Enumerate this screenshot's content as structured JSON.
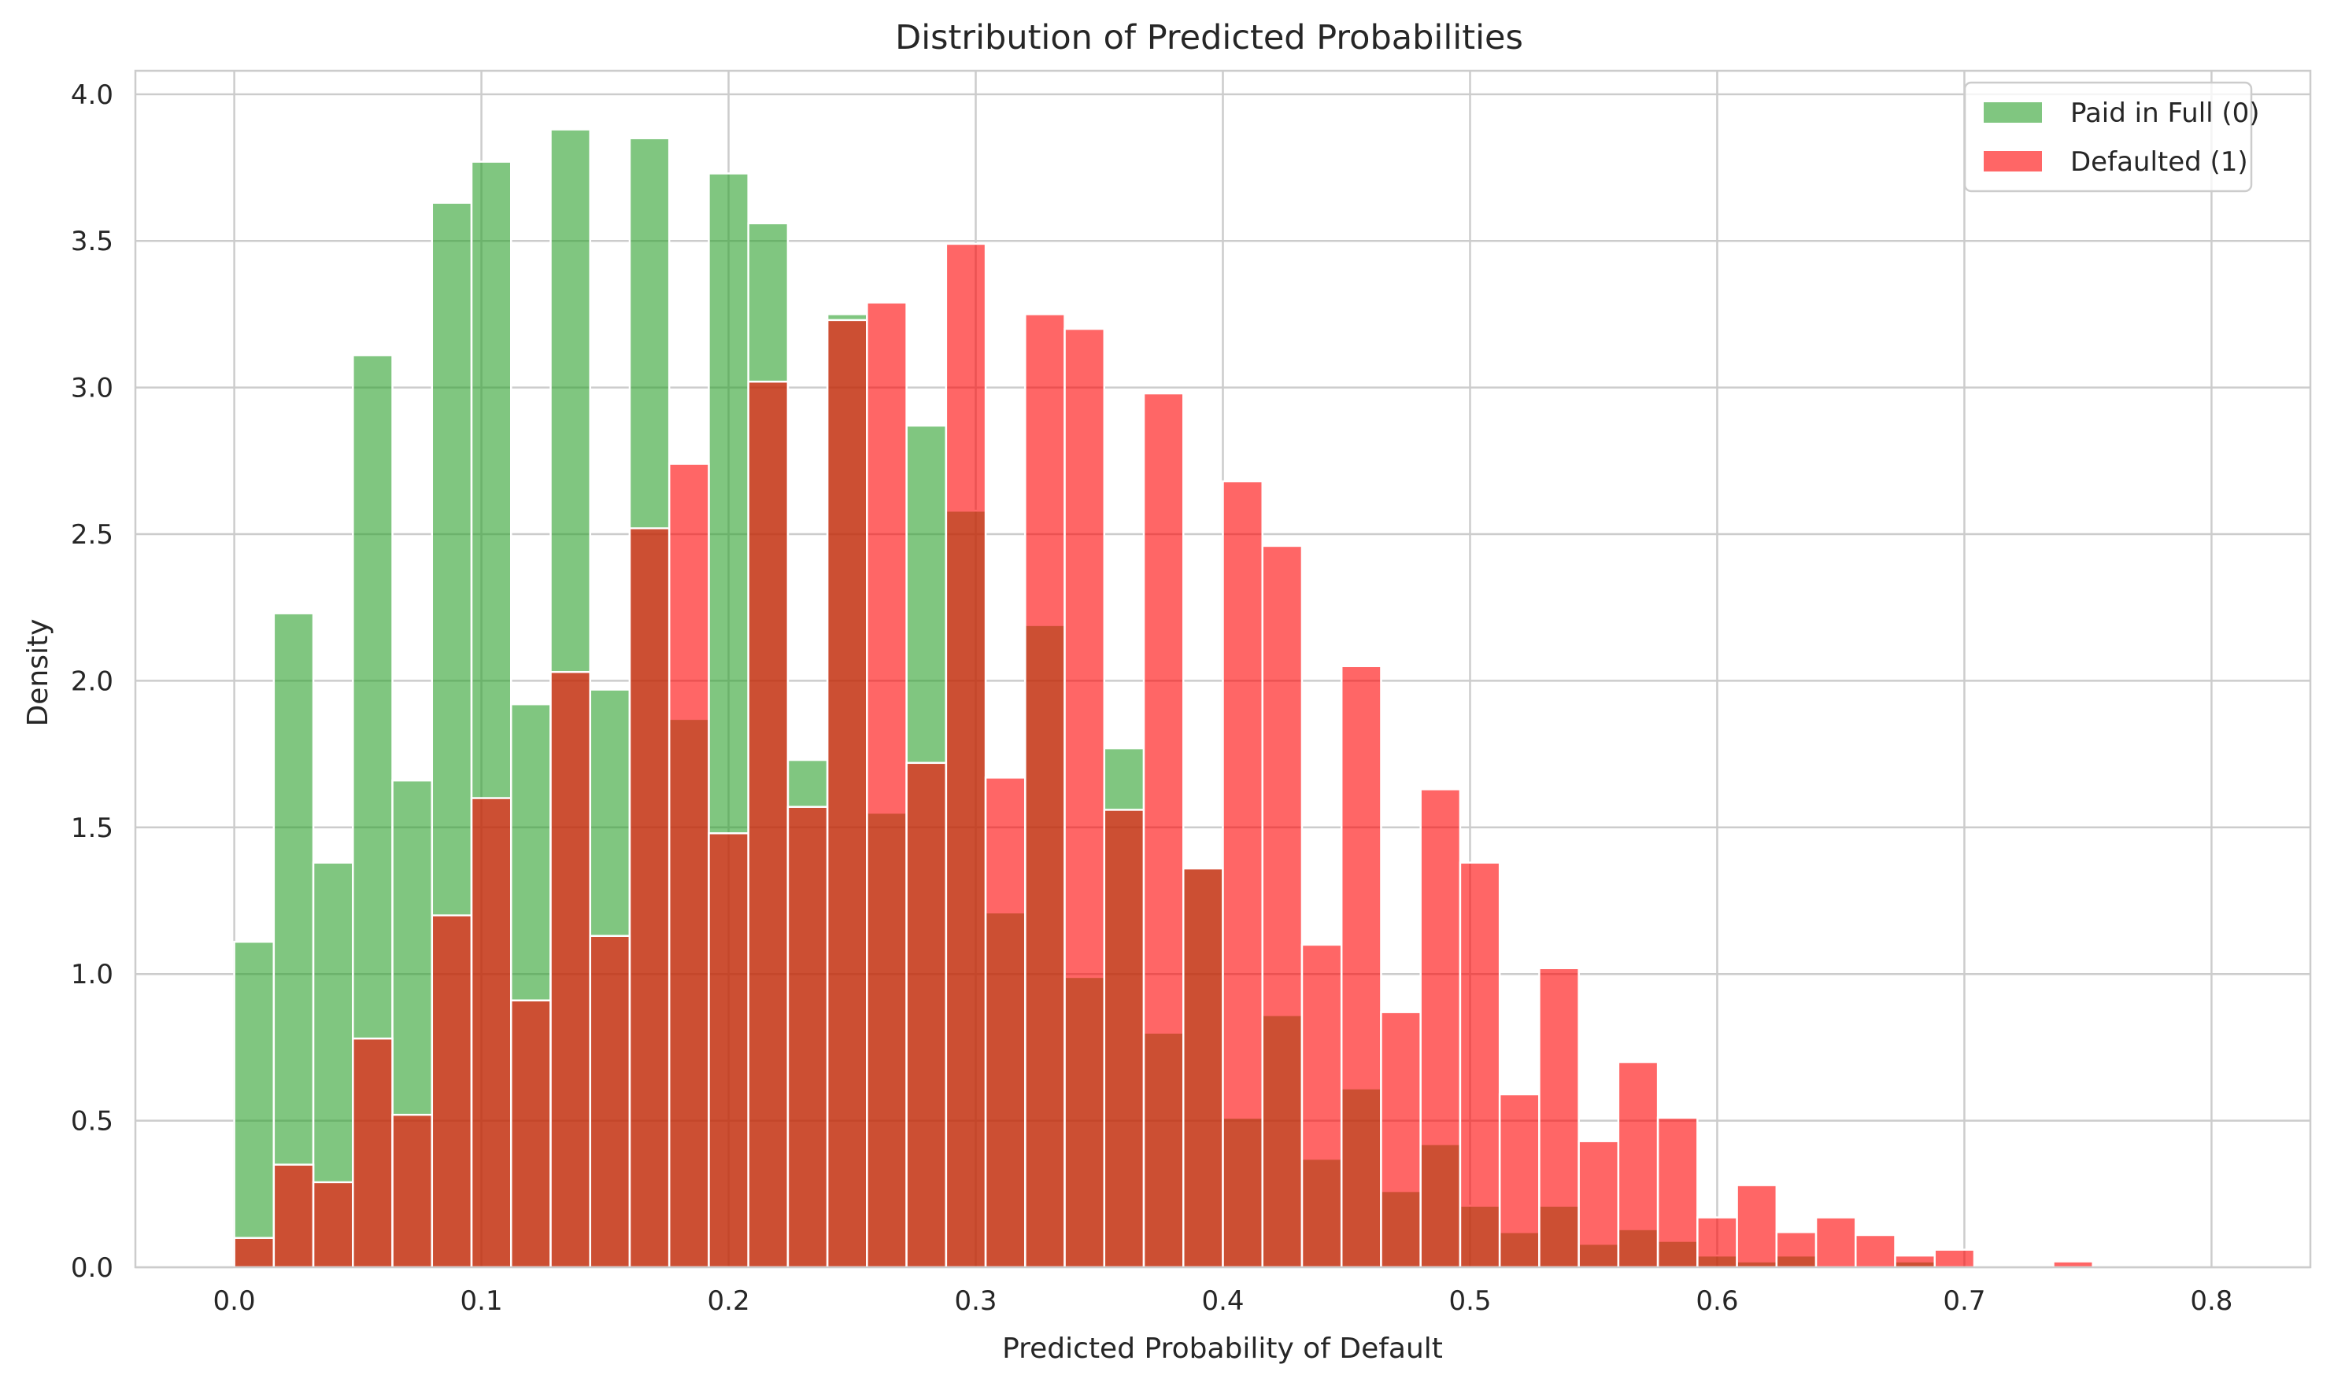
{
  "chart_data": {
    "type": "bar",
    "title": "Distribution of Predicted Probabilities",
    "xlabel": "Predicted Probability of Default",
    "ylabel": "Density",
    "xlim": [
      -0.04,
      0.84
    ],
    "ylim": [
      0,
      4.08
    ],
    "xticks": [
      0.0,
      0.1,
      0.2,
      0.3,
      0.4,
      0.5,
      0.6,
      0.7,
      0.8
    ],
    "xtick_labels": [
      "0.0",
      "0.1",
      "0.2",
      "0.3",
      "0.4",
      "0.5",
      "0.6",
      "0.7",
      "0.8"
    ],
    "yticks": [
      0.0,
      0.5,
      1.0,
      1.5,
      2.0,
      2.5,
      3.0,
      3.5,
      4.0
    ],
    "ytick_labels": [
      "0.0",
      "0.5",
      "1.0",
      "1.5",
      "2.0",
      "2.5",
      "3.0",
      "3.5",
      "4.0"
    ],
    "grid": true,
    "legend_position": "top-right",
    "series": [
      {
        "name": "Paid in Full (0)",
        "color": "#2ca02c",
        "bin_start": 0.0,
        "bin_width": 0.016,
        "values": [
          1.11,
          2.23,
          1.38,
          3.11,
          1.66,
          3.63,
          3.77,
          1.92,
          3.88,
          1.97,
          3.85,
          1.87,
          3.73,
          3.56,
          1.73,
          3.25,
          1.55,
          2.87,
          2.58,
          1.21,
          2.19,
          0.99,
          1.77,
          0.8,
          1.36,
          0.51,
          0.86,
          0.37,
          0.61,
          0.26,
          0.42,
          0.21,
          0.12,
          0.21,
          0.08,
          0.13,
          0.09,
          0.04,
          0.02,
          0.04,
          0.0,
          0.0,
          0.02
        ]
      },
      {
        "name": "Defaulted (1)",
        "color": "#ff0000",
        "bin_start": 0.0,
        "bin_width": 0.016,
        "values": [
          0.1,
          0.35,
          0.29,
          0.78,
          0.52,
          1.2,
          1.6,
          0.91,
          2.03,
          1.13,
          2.52,
          2.74,
          1.48,
          3.02,
          1.57,
          3.23,
          3.29,
          1.72,
          3.49,
          1.67,
          3.25,
          3.2,
          1.56,
          2.98,
          1.36,
          2.68,
          2.46,
          1.1,
          2.05,
          0.87,
          1.63,
          1.38,
          0.59,
          1.02,
          0.43,
          0.7,
          0.51,
          0.17,
          0.28,
          0.12,
          0.17,
          0.11,
          0.04,
          0.06,
          0.0,
          0.0,
          0.02
        ]
      }
    ]
  }
}
